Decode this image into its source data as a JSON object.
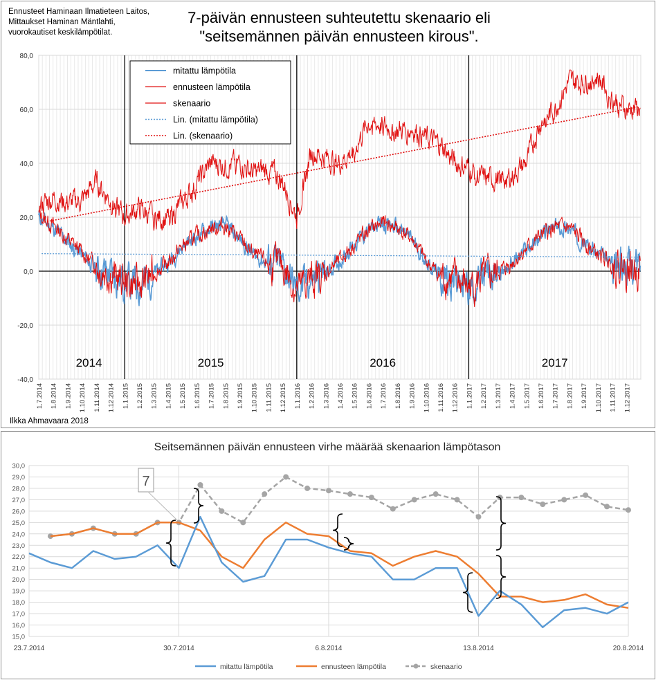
{
  "top": {
    "note_lines": [
      "Ennusteet Haminaan Ilmatieteen Laitos,",
      "Mittaukset Haminan Mäntlahti,",
      "vuorokautiset keskilämpötilat."
    ],
    "title_lines": [
      "7-päivän ennusteen suhteutettu skenaario eli",
      "\"seitsemännen päivän ennusteen kirous\"."
    ],
    "author": "Ilkka Ahmavaara 2018"
  },
  "chart_data": [
    {
      "type": "line",
      "y_ticks": [
        "80,0",
        "60,0",
        "40,0",
        "20,0",
        "0,0",
        "-20,0",
        "-40,0"
      ],
      "ylim": [
        -40,
        80
      ],
      "x_range": [
        "1.7.2014",
        "31.12.2017"
      ],
      "x_tick_labels": [
        "1.7.2014",
        "1.8.2014",
        "1.9.2014",
        "1.10.2014",
        "1.11.2014",
        "1.12.2014",
        "1.1.2015",
        "1.2.2015",
        "1.3.2015",
        "1.4.2015",
        "1.5.2015",
        "1.6.2015",
        "1.7.2015",
        "1.8.2015",
        "1.9.2015",
        "1.10.2015",
        "1.11.2015",
        "1.12.2015",
        "1.1.2016",
        "1.2.2016",
        "1.3.2016",
        "1.4.2016",
        "1.5.2016",
        "1.6.2016",
        "1.7.2016",
        "1.8.2016",
        "1.9.2016",
        "1.10.2016",
        "1.11.2016",
        "1.12.2016",
        "1.1.2017",
        "1.2.2017",
        "1.3.2017",
        "1.4.2017",
        "1.5.2017",
        "1.6.2017",
        "1.7.2017",
        "1.8.2017",
        "1.9.2017",
        "1.10.2017",
        "1.11.2017",
        "1.12.2017"
      ],
      "year_labels": [
        "2014",
        "2015",
        "2016",
        "2017"
      ],
      "legend": [
        "mitattu lämpötila",
        "ennusteen lämpötila",
        "skenaario",
        "Lin. (mitattu lämpötila)",
        "Lin. (skenaario)"
      ],
      "legend_position": "top-left",
      "grid": true,
      "colors": {
        "measured": "#5b9bd5",
        "forecast": "#e01010",
        "scenario": "#e01010",
        "lin_measured": "#5b9bd5",
        "lin_scenario": "#e01010"
      },
      "series": [
        {
          "name": "mitattu lämpötila",
          "monthly_means": [
            20,
            16,
            11,
            6,
            1,
            -1,
            -4,
            -5,
            -1,
            3,
            9,
            13,
            16,
            17,
            12,
            6,
            3,
            2,
            -7,
            -3,
            -1,
            4,
            10,
            15,
            18,
            16,
            12,
            4,
            -2,
            -3,
            -6,
            -3,
            -1,
            3,
            8,
            13,
            16,
            16,
            11,
            6,
            3,
            2
          ]
        },
        {
          "name": "ennusteen lämpötila",
          "monthly_means": [
            21,
            17,
            12,
            7,
            2,
            -1,
            -4,
            -5,
            -1,
            3,
            9,
            13,
            16,
            17,
            12,
            6,
            3,
            2,
            -7,
            -3,
            -1,
            4,
            10,
            15,
            18,
            16,
            12,
            4,
            -2,
            -3,
            -6,
            -3,
            -1,
            3,
            8,
            13,
            16,
            16,
            11,
            6,
            3,
            1
          ]
        },
        {
          "name": "skenaario",
          "monthly_means": [
            24,
            27,
            25,
            26,
            33,
            26,
            20,
            23,
            20,
            19,
            25,
            32,
            40,
            39,
            40,
            36,
            38,
            33,
            20,
            44,
            42,
            40,
            45,
            55,
            54,
            52,
            53,
            49,
            47,
            40,
            38,
            34,
            34,
            35,
            40,
            55,
            60,
            70,
            70,
            72,
            64,
            60
          ]
        },
        {
          "name": "Lin. (mitattu lämpötila)",
          "start": 6.5,
          "end": 5.2
        },
        {
          "name": "Lin. (skenaario)",
          "start": 18,
          "end": 61
        }
      ]
    },
    {
      "type": "line",
      "title": "Seitsemännen päivän ennusteen virhe määrää skenaarion lämpötason",
      "ylim": [
        15,
        30
      ],
      "y_ticks": [
        "30,0",
        "29,0",
        "28,0",
        "27,0",
        "26,0",
        "25,0",
        "24,0",
        "23,0",
        "22,0",
        "21,0",
        "20,0",
        "19,0",
        "18,0",
        "17,0",
        "16,0",
        "15,0"
      ],
      "x_tick_labels": [
        "23.7.2014",
        "30.7.2014",
        "6.8.2014",
        "13.8.2014",
        "20.8.2014"
      ],
      "annotation": "7",
      "legend": [
        "mitattu lämpötila",
        "ennusteen lämpötila",
        "skenaario"
      ],
      "legend_position": "bottom",
      "grid": true,
      "colors": {
        "measured": "#5b9bd5",
        "forecast": "#ed7d31",
        "scenario": "#a5a5a5"
      },
      "series": [
        {
          "name": "mitattu lämpötila",
          "x_start": 0,
          "values": [
            22.3,
            21.5,
            21.0,
            22.5,
            21.8,
            22.0,
            23.0,
            21.0,
            25.5,
            21.5,
            19.8,
            20.3,
            23.5,
            23.5,
            22.8,
            22.3,
            22.0,
            20.0,
            20.0,
            21.0,
            21.0,
            16.8,
            19.0,
            17.8,
            15.8,
            17.3,
            17.5,
            17.0,
            18.0
          ]
        },
        {
          "name": "ennusteen lämpötila",
          "x_start": 1,
          "values": [
            23.8,
            24.0,
            24.5,
            24.0,
            24.0,
            25.0,
            25.0,
            24.3,
            22.0,
            21.0,
            23.5,
            25.0,
            24.0,
            23.8,
            22.5,
            22.3,
            21.2,
            22.0,
            22.5,
            22.0,
            20.5,
            18.5,
            18.5,
            18.0,
            18.2,
            18.7,
            17.8,
            17.5
          ]
        },
        {
          "name": "skenaario",
          "x_start": 1,
          "values": [
            23.8,
            24.0,
            24.5,
            24.0,
            24.0,
            25.0,
            25.0,
            28.3,
            26.0,
            25.0,
            27.5,
            29.0,
            28.0,
            27.8,
            27.5,
            27.2,
            26.2,
            27.0,
            27.5,
            27.0,
            25.5,
            27.2,
            27.2,
            26.6,
            27.0,
            27.4,
            26.4,
            26.1
          ]
        }
      ]
    }
  ]
}
